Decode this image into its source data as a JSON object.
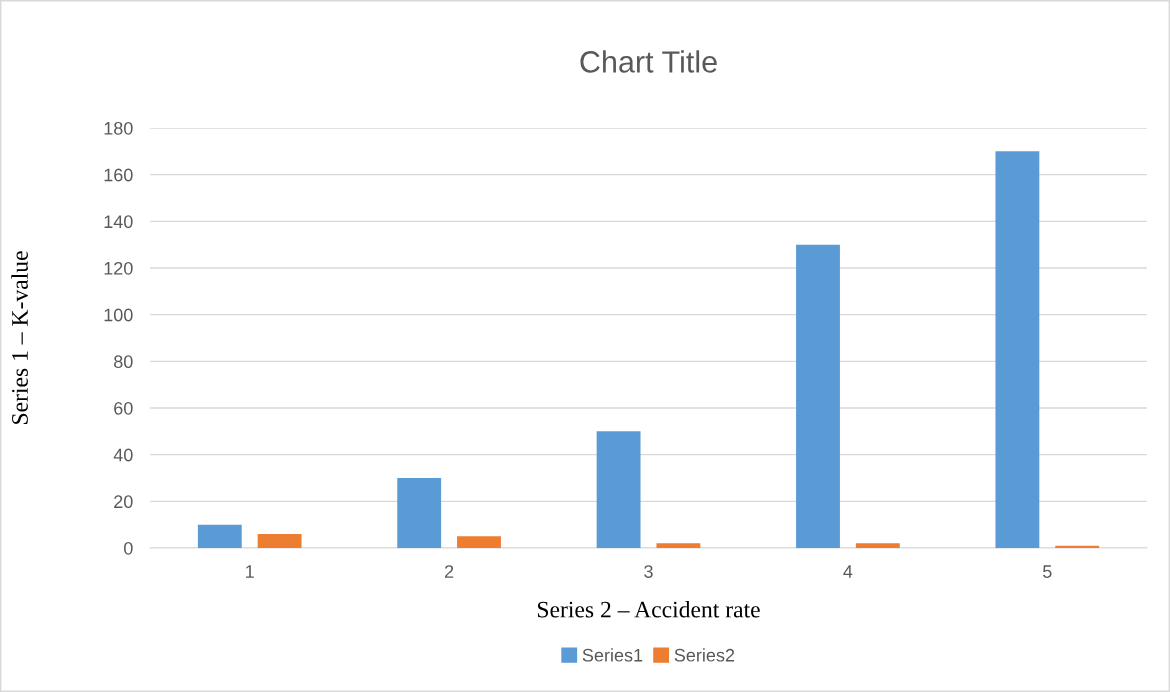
{
  "chart_data": {
    "type": "bar",
    "title": "Chart Title",
    "xlabel": "Series 2 – Accident rate",
    "ylabel": "Series 1 – K-value",
    "categories": [
      "1",
      "2",
      "3",
      "4",
      "5"
    ],
    "series": [
      {
        "name": "Series1",
        "color": "#5b9bd5",
        "values": [
          10,
          30,
          50,
          130,
          170
        ]
      },
      {
        "name": "Series2",
        "color": "#ed7d31",
        "values": [
          6,
          5,
          2,
          2,
          1
        ]
      }
    ],
    "ylim": [
      0,
      180
    ],
    "yticks": [
      0,
      20,
      40,
      60,
      80,
      100,
      120,
      140,
      160,
      180
    ],
    "grid": "y",
    "legend": "bottom"
  }
}
